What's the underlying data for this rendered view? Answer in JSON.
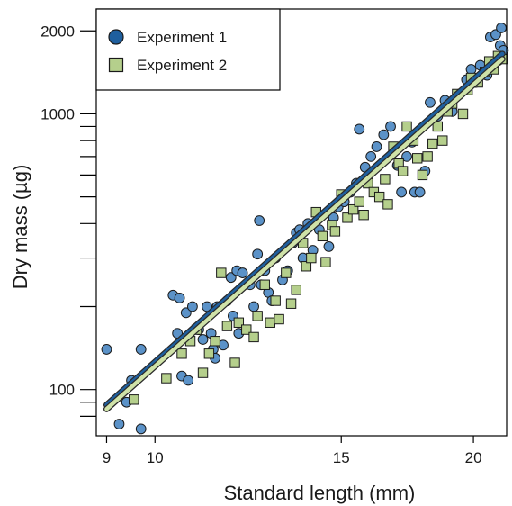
{
  "chart_data": {
    "type": "scatter",
    "xlabel": "Standard length (mm)",
    "ylabel": "Dry mass (µg)",
    "x_scale": "log",
    "y_scale": "log",
    "xlim": [
      8.8,
      21.5
    ],
    "ylim": [
      68,
      2400
    ],
    "x_ticks": [
      9,
      10,
      15,
      20
    ],
    "y_ticks": [
      100,
      1000,
      2000
    ],
    "y_minor_ticks": [
      80,
      90,
      200,
      300,
      400,
      500,
      600,
      700,
      800,
      900
    ],
    "grid": false,
    "legend_position": "top-left",
    "series": [
      {
        "name": "Experiment 1",
        "marker": "circle",
        "color": "#5b92c8",
        "fit_color": "#1f5f9e",
        "fit": [
          [
            9.0,
            88
          ],
          [
            21.3,
            1650
          ]
        ],
        "points": [
          [
            9.0,
            140
          ],
          [
            9.25,
            75
          ],
          [
            9.4,
            90
          ],
          [
            9.5,
            108
          ],
          [
            9.7,
            72
          ],
          [
            9.7,
            140
          ],
          [
            10.4,
            220
          ],
          [
            10.5,
            160
          ],
          [
            10.55,
            215
          ],
          [
            10.6,
            112
          ],
          [
            10.7,
            190
          ],
          [
            10.75,
            108
          ],
          [
            10.85,
            200
          ],
          [
            11.0,
            165
          ],
          [
            11.1,
            152
          ],
          [
            11.2,
            200
          ],
          [
            11.3,
            160
          ],
          [
            11.35,
            140
          ],
          [
            11.4,
            130
          ],
          [
            11.45,
            200
          ],
          [
            11.6,
            145
          ],
          [
            11.7,
            210
          ],
          [
            11.8,
            255
          ],
          [
            11.85,
            185
          ],
          [
            11.95,
            270
          ],
          [
            12.0,
            160
          ],
          [
            12.1,
            265
          ],
          [
            12.3,
            240
          ],
          [
            12.4,
            200
          ],
          [
            12.5,
            310
          ],
          [
            12.55,
            410
          ],
          [
            12.6,
            240
          ],
          [
            12.7,
            270
          ],
          [
            12.8,
            225
          ],
          [
            12.9,
            210
          ],
          [
            13.0,
            300
          ],
          [
            13.2,
            250
          ],
          [
            13.35,
            270
          ],
          [
            13.5,
            340
          ],
          [
            13.6,
            370
          ],
          [
            13.7,
            380
          ],
          [
            13.8,
            300
          ],
          [
            13.95,
            400
          ],
          [
            14.1,
            320
          ],
          [
            14.3,
            380
          ],
          [
            14.6,
            330
          ],
          [
            14.75,
            420
          ],
          [
            14.9,
            460
          ],
          [
            15.1,
            480
          ],
          [
            15.3,
            520
          ],
          [
            15.5,
            560
          ],
          [
            15.6,
            880
          ],
          [
            15.8,
            640
          ],
          [
            16.0,
            700
          ],
          [
            16.2,
            760
          ],
          [
            16.45,
            840
          ],
          [
            16.7,
            900
          ],
          [
            16.95,
            650
          ],
          [
            17.1,
            520
          ],
          [
            17.3,
            700
          ],
          [
            17.5,
            790
          ],
          [
            17.6,
            520
          ],
          [
            17.8,
            520
          ],
          [
            18.0,
            620
          ],
          [
            18.2,
            1100
          ],
          [
            18.5,
            980
          ],
          [
            18.8,
            1120
          ],
          [
            19.1,
            1020
          ],
          [
            19.4,
            1180
          ],
          [
            19.7,
            1330
          ],
          [
            19.9,
            1450
          ],
          [
            20.1,
            1300
          ],
          [
            20.3,
            1500
          ],
          [
            20.6,
            1380
          ],
          [
            20.75,
            1900
          ],
          [
            21.0,
            1940
          ],
          [
            21.1,
            1560
          ],
          [
            21.2,
            1770
          ],
          [
            21.25,
            2050
          ],
          [
            21.35,
            1700
          ]
        ]
      },
      {
        "name": "Experiment 2",
        "marker": "square",
        "color": "#b5cf8c",
        "fit_color": "#cfe2a8",
        "fit": [
          [
            9.0,
            85
          ],
          [
            21.3,
            1580
          ]
        ],
        "points": [
          [
            9.55,
            92
          ],
          [
            10.25,
            110
          ],
          [
            10.6,
            135
          ],
          [
            10.8,
            150
          ],
          [
            10.95,
            165
          ],
          [
            11.1,
            115
          ],
          [
            11.25,
            135
          ],
          [
            11.4,
            150
          ],
          [
            11.55,
            265
          ],
          [
            11.7,
            170
          ],
          [
            11.9,
            125
          ],
          [
            12.0,
            175
          ],
          [
            12.2,
            165
          ],
          [
            12.4,
            155
          ],
          [
            12.5,
            185
          ],
          [
            12.7,
            240
          ],
          [
            12.85,
            175
          ],
          [
            13.0,
            210
          ],
          [
            13.1,
            180
          ],
          [
            13.3,
            265
          ],
          [
            13.45,
            205
          ],
          [
            13.6,
            230
          ],
          [
            13.8,
            340
          ],
          [
            13.9,
            280
          ],
          [
            14.05,
            300
          ],
          [
            14.2,
            440
          ],
          [
            14.4,
            360
          ],
          [
            14.5,
            290
          ],
          [
            14.7,
            395
          ],
          [
            14.8,
            375
          ],
          [
            15.0,
            510
          ],
          [
            15.2,
            420
          ],
          [
            15.4,
            450
          ],
          [
            15.6,
            480
          ],
          [
            15.75,
            430
          ],
          [
            15.9,
            560
          ],
          [
            16.1,
            520
          ],
          [
            16.3,
            500
          ],
          [
            16.5,
            580
          ],
          [
            16.6,
            470
          ],
          [
            16.8,
            760
          ],
          [
            17.0,
            660
          ],
          [
            17.15,
            620
          ],
          [
            17.3,
            900
          ],
          [
            17.55,
            800
          ],
          [
            17.7,
            690
          ],
          [
            17.9,
            600
          ],
          [
            18.1,
            700
          ],
          [
            18.3,
            780
          ],
          [
            18.5,
            900
          ],
          [
            18.7,
            800
          ],
          [
            18.9,
            1020
          ],
          [
            19.1,
            1090
          ],
          [
            19.3,
            1180
          ],
          [
            19.55,
            1000
          ],
          [
            19.75,
            1220
          ],
          [
            19.9,
            1350
          ],
          [
            20.2,
            1300
          ],
          [
            20.5,
            1420
          ],
          [
            20.7,
            1550
          ],
          [
            20.9,
            1450
          ],
          [
            21.1,
            1620
          ],
          [
            21.3,
            1580
          ]
        ]
      }
    ]
  }
}
